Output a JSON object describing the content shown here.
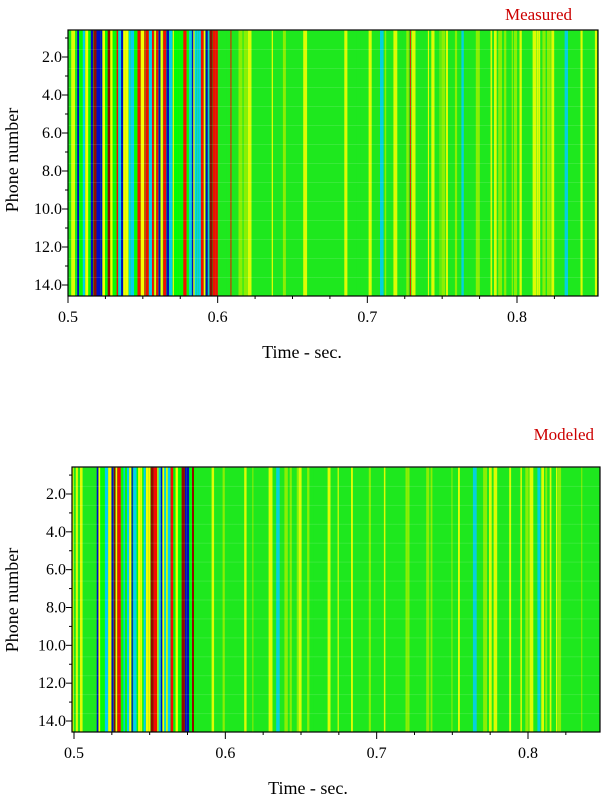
{
  "chart_data": [
    {
      "type": "heatmap",
      "title": "Measured",
      "xlabel": "Time - sec.",
      "ylabel": "Phone number",
      "xlim": [
        0.5,
        0.85
      ],
      "ylim": [
        1,
        15
      ],
      "x_ticks": [
        "0.5",
        "0.6",
        "0.7",
        "0.8"
      ],
      "y_ticks": [
        "2.0",
        "4.0",
        "6.0",
        "8.0",
        "10.0",
        "12.0",
        "14.0"
      ],
      "colormap": [
        "#0000cc",
        "#00ccff",
        "#00ff00",
        "#ffff00",
        "#ff0000",
        "#990000"
      ],
      "background_color": "#1ee81e"
    },
    {
      "type": "heatmap",
      "title": "Modeled",
      "xlabel": "Time - sec.",
      "ylabel": "Phone number",
      "xlim": [
        0.5,
        0.85
      ],
      "ylim": [
        1,
        15
      ],
      "x_ticks": [
        "0.5",
        "0.6",
        "0.7",
        "0.8"
      ],
      "y_ticks": [
        "2.0",
        "4.0",
        "6.0",
        "8.0",
        "10.0",
        "12.0",
        "14.0"
      ],
      "colormap": [
        "#0000cc",
        "#00ccff",
        "#00ff00",
        "#ffff00",
        "#ff0000",
        "#990000"
      ],
      "background_color": "#1ee81e"
    }
  ]
}
